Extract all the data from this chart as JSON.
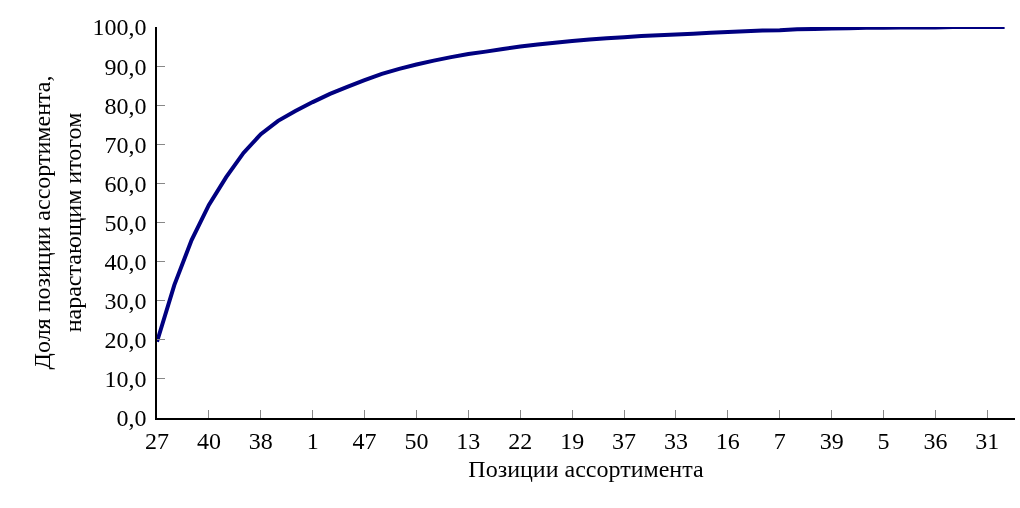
{
  "chart_data": {
    "type": "line",
    "xlabel": "Позиции ассортимента",
    "ylabel": "Доля позиции ассортимента,\nнарастающим итогом",
    "categories": [
      "27",
      null,
      null,
      "40",
      null,
      null,
      "38",
      null,
      null,
      "1",
      null,
      null,
      "47",
      null,
      null,
      "50",
      null,
      null,
      "13",
      null,
      null,
      "22",
      null,
      null,
      "19",
      null,
      null,
      "37",
      null,
      null,
      "33",
      null,
      null,
      "16",
      null,
      null,
      "7",
      null,
      null,
      "39",
      null,
      null,
      "5",
      null,
      null,
      "36",
      null,
      null,
      "31",
      null
    ],
    "series": [
      {
        "color": "#000080",
        "values": [
          19.5,
          34,
          45.5,
          54.5,
          61.6,
          67.8,
          72.6,
          76,
          78.5,
          80.8,
          82.9,
          84.7,
          86.4,
          88,
          89.3,
          90.4,
          91.4,
          92.3,
          93.1,
          93.7,
          94.4,
          95,
          95.5,
          96,
          96.4,
          96.8,
          97.1,
          97.4,
          97.7,
          97.9,
          98.1,
          98.3,
          98.5,
          98.7,
          98.9,
          99.1,
          99.2,
          99.4,
          99.5,
          99.6,
          99.7,
          99.8,
          99.8,
          99.9,
          99.9,
          99.9,
          100,
          100,
          100,
          100
        ]
      }
    ],
    "ylim": [
      0,
      100
    ],
    "yticks": [
      {
        "value": 0,
        "label": "0,0"
      },
      {
        "value": 10,
        "label": "10,0"
      },
      {
        "value": 20,
        "label": "20,0"
      },
      {
        "value": 30,
        "label": "30,0"
      },
      {
        "value": 40,
        "label": "40,0"
      },
      {
        "value": 50,
        "label": "50,0"
      },
      {
        "value": 60,
        "label": "60,0"
      },
      {
        "value": 70,
        "label": "70,0"
      },
      {
        "value": 80,
        "label": "80,0"
      },
      {
        "value": 90,
        "label": "90,0"
      },
      {
        "value": 100,
        "label": "100,0"
      }
    ],
    "grid": false,
    "marker": "none",
    "line_style": "solid"
  }
}
